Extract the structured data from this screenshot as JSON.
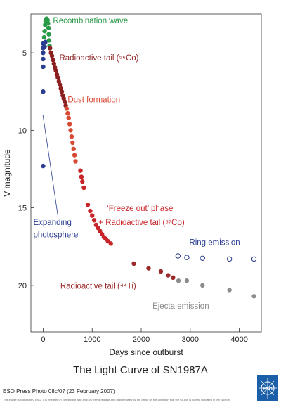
{
  "chart_data": {
    "type": "scatter",
    "title": "The Light Curve of SN1987A",
    "xlabel": "Days since outburst",
    "ylabel": "V magnitude",
    "xlim": [
      -250,
      4450
    ],
    "ylim": [
      23,
      2.5
    ],
    "y_inverted": true,
    "xticks": [
      0,
      1000,
      2000,
      3000,
      4000
    ],
    "yticks": [
      5,
      10,
      15,
      20
    ],
    "colors": {
      "recombination": "#2a9a48",
      "early_blue": "#2b3d8f",
      "radioactive_co56": "#8b1f1f",
      "dust": "#d64a33",
      "freeze_out": "#c8252a",
      "tail_ti44": "#9b2a2a",
      "ring": "#2b3d8f",
      "ejecta": "#8c8c8c"
    },
    "series": [
      {
        "key": "early_blue",
        "marker": "filled",
        "points": [
          [
            0,
            4.4
          ],
          [
            0,
            4.7
          ],
          [
            0,
            5.0
          ],
          [
            0,
            5.4
          ],
          [
            0,
            5.9
          ],
          [
            0,
            7.5
          ],
          [
            0,
            12.3
          ],
          [
            30,
            4.6
          ],
          [
            45,
            4.3
          ]
        ]
      },
      {
        "key": "recombination",
        "marker": "filled",
        "points": [
          [
            20,
            4.0
          ],
          [
            30,
            3.6
          ],
          [
            40,
            3.2
          ],
          [
            50,
            2.95
          ],
          [
            60,
            2.85
          ],
          [
            70,
            2.8
          ],
          [
            80,
            2.85
          ],
          [
            90,
            2.9
          ],
          [
            100,
            3.1
          ],
          [
            110,
            3.4
          ],
          [
            115,
            3.8
          ],
          [
            120,
            4.2
          ],
          [
            130,
            4.55
          ]
        ]
      },
      {
        "key": "radioactive_co56",
        "marker": "filled",
        "points": [
          [
            140,
            4.7
          ],
          [
            160,
            5.0
          ],
          [
            180,
            5.2
          ],
          [
            200,
            5.45
          ],
          [
            220,
            5.7
          ],
          [
            240,
            5.95
          ],
          [
            260,
            6.15
          ],
          [
            280,
            6.4
          ],
          [
            300,
            6.6
          ],
          [
            320,
            6.85
          ],
          [
            340,
            7.05
          ],
          [
            360,
            7.3
          ],
          [
            380,
            7.5
          ],
          [
            400,
            7.75
          ],
          [
            420,
            7.95
          ],
          [
            440,
            8.15
          ],
          [
            460,
            8.4
          ]
        ]
      },
      {
        "key": "dust",
        "marker": "filled",
        "points": [
          [
            480,
            8.6
          ],
          [
            500,
            8.9
          ],
          [
            520,
            9.2
          ],
          [
            540,
            9.6
          ],
          [
            560,
            10.0
          ],
          [
            580,
            10.4
          ],
          [
            600,
            10.8
          ],
          [
            620,
            11.2
          ],
          [
            640,
            11.6
          ],
          [
            660,
            12.0
          ]
        ]
      },
      {
        "key": "freeze_out",
        "marker": "filled",
        "points": [
          [
            760,
            12.6
          ],
          [
            780,
            13.0
          ],
          [
            800,
            13.3
          ],
          [
            830,
            13.7
          ],
          [
            910,
            14.8
          ],
          [
            960,
            15.2
          ],
          [
            1000,
            15.5
          ],
          [
            1040,
            15.8
          ],
          [
            1080,
            16.1
          ],
          [
            1120,
            16.3
          ],
          [
            1160,
            16.5
          ],
          [
            1200,
            16.7
          ],
          [
            1240,
            16.9
          ],
          [
            1280,
            17.0
          ],
          [
            1320,
            17.15
          ],
          [
            1380,
            17.3
          ]
        ]
      },
      {
        "key": "tail_ti44",
        "marker": "filled",
        "points": [
          [
            1850,
            18.6
          ],
          [
            2150,
            18.9
          ],
          [
            2400,
            19.1
          ],
          [
            2550,
            19.35
          ],
          [
            2650,
            19.5
          ]
        ]
      },
      {
        "key": "ejecta",
        "marker": "filled",
        "points": [
          [
            2760,
            19.7
          ],
          [
            2930,
            19.7
          ],
          [
            3250,
            20.0
          ],
          [
            3800,
            20.3
          ],
          [
            4300,
            20.7
          ]
        ]
      },
      {
        "key": "ring",
        "marker": "open",
        "points": [
          [
            2750,
            18.1
          ],
          [
            2930,
            18.2
          ],
          [
            3250,
            18.25
          ],
          [
            3800,
            18.3
          ],
          [
            4300,
            18.3
          ]
        ]
      }
    ],
    "annotations": [
      {
        "text": "Recombination wave",
        "color_key": "recombination",
        "x": 200,
        "y": 3.1
      },
      {
        "text": "Radioactive tail (⁵⁶Co)",
        "color_key": "radioactive_co56",
        "x": 330,
        "y": 5.5
      },
      {
        "text": "Dust formation",
        "color_key": "dust",
        "x": 500,
        "y": 8.2
      },
      {
        "text": "‘Freeze out’ phase",
        "color_key": "freeze_out",
        "x": 1300,
        "y": 15.2
      },
      {
        "text": "+ Radioactive tail (⁵⁷Co)",
        "color_key": "freeze_out",
        "x": 1130,
        "y": 16.1
      },
      {
        "text": "Expanding",
        "color_key": "early_blue",
        "x": -200,
        "y": 16.1
      },
      {
        "text": "photosphere",
        "color_key": "early_blue",
        "x": -200,
        "y": 16.9
      },
      {
        "text": "Ring emission",
        "color_key": "ring",
        "x": 2980,
        "y": 17.4
      },
      {
        "text": "Radioactive tail (⁴⁴Ti)",
        "color_key": "tail_ti44",
        "x": 350,
        "y": 20.2
      },
      {
        "text": "Ejecta emission",
        "color_key": "ejecta",
        "x": 2230,
        "y": 21.5
      }
    ]
  },
  "footer": {
    "credit": "ESO Press Photo 08c/07 (23 February 2007)",
    "fineprint": "This image is copyright © ESO. It is released in connection with an ESO press release and may be used by the press on the condition that the source is clearly indicated in the caption.",
    "logo_text": "ESO"
  }
}
